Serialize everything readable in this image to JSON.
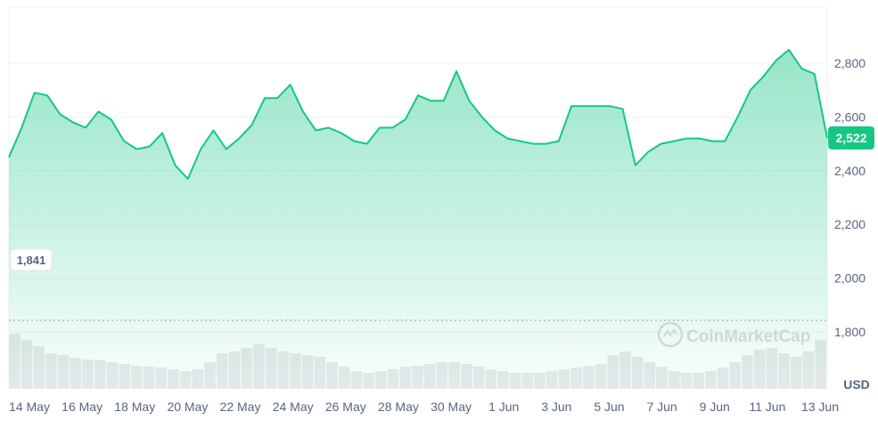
{
  "chart_data": {
    "type": "area",
    "currency_label": "USD",
    "watermark": "CoinMarketCap",
    "current_price": 2522,
    "current_price_label": "2,522",
    "baseline_value": 1841,
    "baseline_label": "1,841",
    "ylim": [
      1750,
      2900
    ],
    "y_ticks": [
      {
        "value": 1800,
        "label": "1,800"
      },
      {
        "value": 2000,
        "label": "2,000"
      },
      {
        "value": 2200,
        "label": "2,200"
      },
      {
        "value": 2400,
        "label": "2,400"
      },
      {
        "value": 2600,
        "label": "2,600"
      },
      {
        "value": 2800,
        "label": "2,800"
      }
    ],
    "x_ticks": [
      "14 May",
      "16 May",
      "18 May",
      "20 May",
      "22 May",
      "24 May",
      "26 May",
      "28 May",
      "30 May",
      "1 Jun",
      "3 Jun",
      "5 Jun",
      "7 Jun",
      "9 Jun",
      "11 Jun",
      "13 Jun"
    ],
    "x_start": "13 May",
    "x_end": "13 Jun",
    "series": [
      {
        "x": [
          "13 May",
          "13 May",
          "14 May",
          "14 May",
          "15 May",
          "15 May",
          "16 May",
          "16 May",
          "17 May",
          "17 May",
          "18 May",
          "18 May",
          "19 May",
          "19 May",
          "19 May",
          "20 May",
          "20 May",
          "21 May",
          "21 May",
          "22 May",
          "22 May",
          "23 May",
          "23 May",
          "24 May",
          "24 May",
          "25 May",
          "25 May",
          "26 May",
          "26 May",
          "27 May",
          "27 May",
          "28 May",
          "28 May",
          "29 May",
          "29 May",
          "30 May",
          "30 May",
          "31 May",
          "31 May",
          "1 Jun",
          "1 Jun",
          "2 Jun",
          "2 Jun",
          "3 Jun",
          "3 Jun",
          "4 Jun",
          "4 Jun",
          "5 Jun",
          "5 Jun",
          "6 Jun",
          "6 Jun",
          "7 Jun",
          "7 Jun",
          "8 Jun",
          "8 Jun",
          "9 Jun",
          "9 Jun",
          "10 Jun",
          "10 Jun",
          "11 Jun",
          "11 Jun",
          "12 Jun",
          "12 Jun",
          "13 Jun",
          "13 Jun"
        ],
        "values": [
          2450,
          2560,
          2690,
          2680,
          2610,
          2580,
          2560,
          2620,
          2590,
          2510,
          2480,
          2490,
          2540,
          2420,
          2370,
          2480,
          2550,
          2480,
          2520,
          2570,
          2670,
          2670,
          2720,
          2620,
          2550,
          2560,
          2540,
          2510,
          2500,
          2560,
          2560,
          2590,
          2680,
          2660,
          2660,
          2770,
          2660,
          2600,
          2550,
          2520,
          2510,
          2500,
          2500,
          2510,
          2640,
          2640,
          2640,
          2640,
          2630,
          2420,
          2470,
          2500,
          2510,
          2520,
          2520,
          2510,
          2510,
          2600,
          2700,
          2750,
          2810,
          2850,
          2780,
          2760,
          2522
        ]
      }
    ],
    "volume": [
      62,
      55,
      48,
      40,
      38,
      35,
      33,
      32,
      30,
      28,
      26,
      25,
      24,
      22,
      20,
      22,
      30,
      40,
      42,
      46,
      50,
      46,
      42,
      40,
      38,
      36,
      30,
      25,
      20,
      18,
      20,
      22,
      25,
      26,
      28,
      30,
      30,
      28,
      25,
      22,
      20,
      18,
      18,
      18,
      20,
      22,
      24,
      26,
      28,
      38,
      42,
      36,
      30,
      25,
      20,
      18,
      18,
      20,
      24,
      30,
      38,
      44,
      46,
      40,
      36,
      42,
      55
    ]
  }
}
